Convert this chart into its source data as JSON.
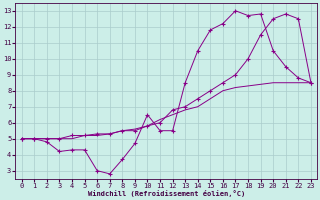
{
  "bg_color": "#cceee8",
  "grid_color": "#aacccc",
  "line_color": "#880088",
  "marker": "+",
  "xlabel": "Windchill (Refroidissement éolien,°C)",
  "xlim": [
    -0.5,
    23.5
  ],
  "ylim": [
    2.5,
    13.5
  ],
  "xticks": [
    0,
    1,
    2,
    3,
    4,
    5,
    6,
    7,
    8,
    9,
    10,
    11,
    12,
    13,
    14,
    15,
    16,
    17,
    18,
    19,
    20,
    21,
    22,
    23
  ],
  "yticks": [
    3,
    4,
    5,
    6,
    7,
    8,
    9,
    10,
    11,
    12,
    13
  ],
  "line1_x": [
    0,
    1,
    2,
    3,
    4,
    5,
    6,
    7,
    8,
    9,
    10,
    11,
    12,
    13,
    14,
    15,
    16,
    17,
    18,
    19,
    20,
    21,
    22,
    23
  ],
  "line1_y": [
    5.0,
    5.0,
    4.8,
    4.2,
    4.3,
    4.3,
    3.0,
    2.8,
    3.7,
    4.7,
    6.5,
    5.5,
    5.5,
    8.5,
    10.5,
    11.8,
    12.2,
    13.0,
    12.7,
    12.8,
    10.5,
    9.5,
    8.8,
    8.5
  ],
  "line2_x": [
    0,
    1,
    2,
    3,
    4,
    5,
    6,
    7,
    8,
    9,
    10,
    11,
    12,
    13,
    14,
    15,
    16,
    17,
    18,
    19,
    20,
    21,
    22,
    23
  ],
  "line2_y": [
    5.0,
    5.0,
    5.0,
    5.0,
    5.2,
    5.2,
    5.3,
    5.3,
    5.5,
    5.5,
    5.8,
    6.0,
    6.8,
    7.0,
    7.5,
    8.0,
    8.5,
    9.0,
    10.0,
    11.5,
    12.5,
    12.8,
    12.5,
    8.5
  ],
  "line3_x": [
    0,
    1,
    2,
    3,
    4,
    5,
    6,
    7,
    8,
    9,
    10,
    11,
    12,
    13,
    14,
    15,
    16,
    17,
    18,
    19,
    20,
    21,
    22,
    23
  ],
  "line3_y": [
    5.0,
    5.0,
    5.0,
    5.0,
    5.0,
    5.2,
    5.2,
    5.3,
    5.5,
    5.6,
    5.8,
    6.2,
    6.5,
    6.8,
    7.0,
    7.5,
    8.0,
    8.2,
    8.3,
    8.4,
    8.5,
    8.5,
    8.5,
    8.5
  ]
}
